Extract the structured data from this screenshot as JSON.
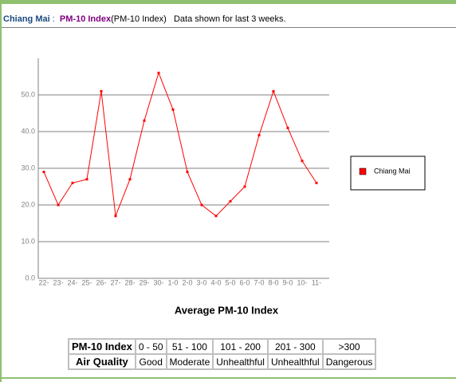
{
  "header": {
    "city": "Chiang Mai",
    "separator": ":",
    "index_name": "PM-10 Index",
    "index_note": "(PM-10 Index)",
    "period": "Data shown for last 3 weeks."
  },
  "chart_data": {
    "type": "line",
    "x_label": "Average PM-10 Index",
    "categories": [
      "22-",
      "23-",
      "24-",
      "25-",
      "26-",
      "27-",
      "28-",
      "29-",
      "30-",
      "1-0",
      "2-0",
      "3-0",
      "4-0",
      "5-0",
      "6-0",
      "7-0",
      "8-0",
      "9-0",
      "10-",
      "11-"
    ],
    "series": [
      {
        "name": "Chiang Mai",
        "color": "#ff0000",
        "values": [
          29,
          20,
          26,
          27,
          51,
          17,
          27,
          43,
          56,
          46,
          29,
          20,
          17,
          21,
          25,
          39,
          51,
          41,
          32,
          26
        ]
      }
    ],
    "ylim": [
      0,
      60
    ],
    "yticks": [
      {
        "value": 0,
        "label": "0.0"
      },
      {
        "value": 10,
        "label": "10.0"
      },
      {
        "value": 20,
        "label": "20.0"
      },
      {
        "value": 30,
        "label": "30.0"
      },
      {
        "value": 40,
        "label": "40.0"
      },
      {
        "value": 50,
        "label": "50.0"
      }
    ],
    "grid": true,
    "legend": "right"
  },
  "table": {
    "rows": [
      [
        "PM-10 Index",
        "0 - 50",
        "51 - 100",
        "101 - 200",
        "201 - 300",
        ">300"
      ],
      [
        "Air Quality",
        "Good",
        "Moderate",
        "Unhealthful",
        "Unhealthful",
        "Dangerous"
      ]
    ]
  }
}
